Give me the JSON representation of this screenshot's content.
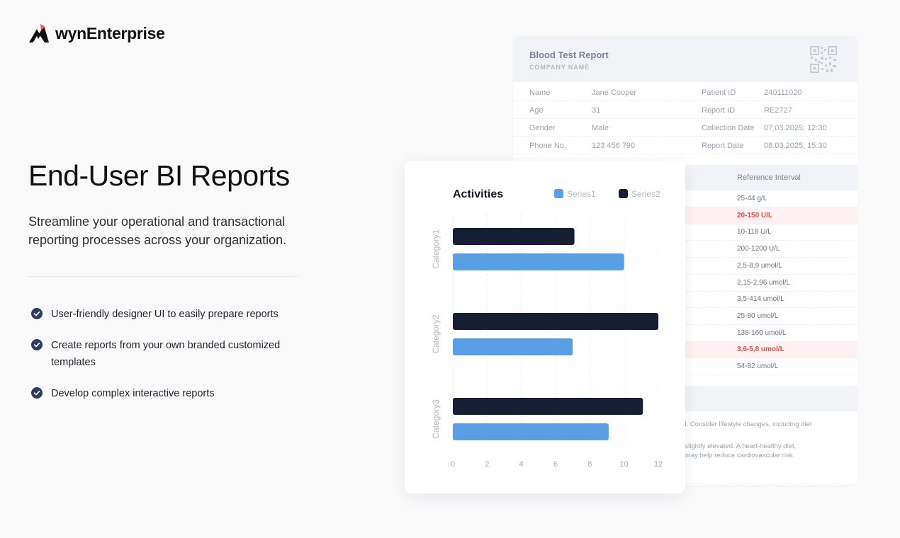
{
  "brand": {
    "name": "wynEnterprise"
  },
  "hero": {
    "title": "End-User BI Reports",
    "subtitle": "Streamline your operational and transactional reporting processes across your organization."
  },
  "features": [
    {
      "icon": "check-circle-icon",
      "text": "User-friendly designer UI to easily prepare reports"
    },
    {
      "icon": "check-circle-icon",
      "text": "Create reports from your own branded customized templates"
    },
    {
      "icon": "check-circle-icon",
      "text": "Develop complex interactive reports"
    }
  ],
  "report": {
    "title": "Blood Test Report",
    "company": "COMPANY NAME",
    "qr_icon": "qr-code-icon",
    "info": [
      {
        "l1": "Name",
        "v1": "Jane Cooper",
        "l2": "Patient ID",
        "v2": "240111020"
      },
      {
        "l1": "Age",
        "v1": "31",
        "l2": "Report ID",
        "v2": "RE2727"
      },
      {
        "l1": "Gender",
        "v1": "Male",
        "l2": "Collection Date",
        "v2": "07.03.2025; 12:30"
      },
      {
        "l1": "Phone No.",
        "v1": "123 456 790",
        "l2": "Report Date",
        "v2": "08.03.2025; 15:30"
      }
    ],
    "reference_header": "Reference Interval",
    "reference": [
      {
        "value": "25-44 g/L",
        "alert": false
      },
      {
        "value": "20-150  U/L",
        "alert": true
      },
      {
        "value": "10-118 U/L",
        "alert": false
      },
      {
        "value": "200-1200 U/L",
        "alert": false
      },
      {
        "value": "2,5-8,9 umol/L",
        "alert": false
      },
      {
        "value": "2,15-2,96 umol/L",
        "alert": false
      },
      {
        "value": "3,5-414 umol/L",
        "alert": false
      },
      {
        "value": "25-80 umol/L",
        "alert": false
      },
      {
        "value": "138-160 umol/L",
        "alert": false
      },
      {
        "value": "3,6-5,8 umol/L",
        "alert": true
      },
      {
        "value": "54-82 umol/L",
        "alert": false
      }
    ],
    "notes": [
      "evated. Consider lifestyle changes, including diet",
      "ol are slightly elevated. A heart-healthy diet,",
      "octor) may help reduce cardiovascular risk."
    ]
  },
  "chart_data": {
    "type": "bar",
    "orientation": "horizontal",
    "title": "Activities",
    "categories": [
      "Category1",
      "Category2",
      "Category3"
    ],
    "series": [
      {
        "name": "Series1",
        "values": [
          10,
          7,
          9.1
        ],
        "color": "#5a9fe6"
      },
      {
        "name": "Series2",
        "values": [
          7.1,
          12,
          11.1
        ],
        "color": "#161f36"
      }
    ],
    "xlim": [
      0,
      12
    ],
    "xticks": [
      0,
      2,
      4,
      6,
      8,
      10,
      12
    ],
    "grid": true,
    "legend": "top-right"
  }
}
